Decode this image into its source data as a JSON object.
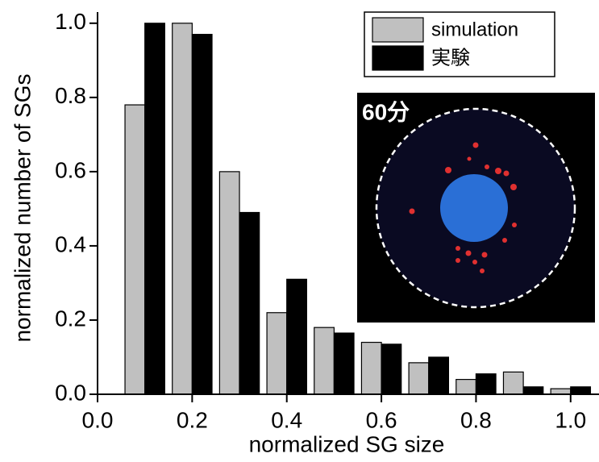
{
  "chart_data": {
    "type": "bar",
    "x_label": "normalized SG size",
    "y_label": "normalized number of SGs",
    "x": [
      0.1,
      0.2,
      0.3,
      0.4,
      0.5,
      0.6,
      0.7,
      0.8,
      0.9,
      1.0
    ],
    "series": [
      {
        "name": "simulation",
        "color": "#c0c0c0",
        "values": [
          0.78,
          1.0,
          0.6,
          0.22,
          0.18,
          0.14,
          0.085,
          0.04,
          0.06,
          0.015
        ]
      },
      {
        "name": "実験",
        "color": "#000000",
        "values": [
          1.0,
          0.97,
          0.49,
          0.31,
          0.165,
          0.135,
          0.1,
          0.055,
          0.02,
          0.02
        ]
      }
    ],
    "xlim": [
      0,
      1.06
    ],
    "ylim": [
      0,
      1.03
    ],
    "xticks": [
      {
        "value": 0,
        "label": "0.0"
      },
      0.2,
      0.4,
      0.6,
      0.8,
      {
        "value": 1,
        "label": "1.0"
      }
    ],
    "yticks": [
      {
        "value": 0,
        "label": "0.0"
      },
      0.2,
      0.4,
      0.6,
      0.8,
      {
        "value": 1,
        "label": "1.0"
      }
    ],
    "inset_label": "60分"
  }
}
